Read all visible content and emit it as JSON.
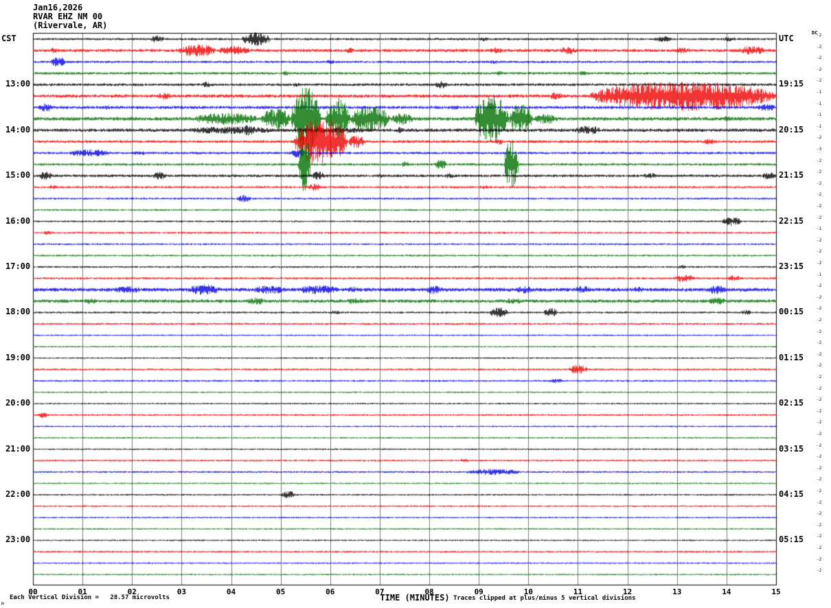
{
  "header": {
    "date": "Jan16,2026",
    "station": "RVAR EHZ NM 00",
    "location": "(Rivervale, AR)",
    "left_tz": "CST",
    "right_tz": "UTC",
    "dc_label": "DC"
  },
  "footer": {
    "scale_note": "Each Vertical Division =   28.57 microvolts",
    "xlabel": "TIME (MINUTES)",
    "clip_note": "Traces clipped at plus/minus 5 vertical divisions",
    "mark": "M"
  },
  "x_axis": {
    "ticks": [
      "00",
      "01",
      "02",
      "03",
      "04",
      "05",
      "06",
      "07",
      "08",
      "09",
      "10",
      "11",
      "12",
      "13",
      "14",
      "15"
    ]
  },
  "chart_data": {
    "type": "line",
    "title": "RVAR EHZ NM 00 (Rivervale, AR) helicorder Jan16,2026",
    "xlabel": "TIME (MINUTES)",
    "x_range_minutes": [
      0,
      15
    ],
    "row_duration_minutes": 15,
    "microvolts_per_division": "28.57",
    "clip_divisions": 5,
    "trace_order_colors": [
      "black",
      "red",
      "blue",
      "green"
    ],
    "colors": {
      "black": "#000000",
      "red": "#f00000",
      "blue": "#0000e0",
      "green": "#007000"
    },
    "rows": [
      {
        "cst": "CST",
        "utc": "UTC",
        "color": "black",
        "dc": "-2",
        "amp": 1.5,
        "events": [
          [
            2.35,
            2.65,
            5
          ],
          [
            4.2,
            4.8,
            9
          ],
          [
            9.0,
            9.2,
            3
          ],
          [
            12.5,
            12.9,
            4
          ],
          [
            13.9,
            14.2,
            3
          ]
        ]
      },
      {
        "cst": "",
        "utc": "",
        "color": "red",
        "dc": "-2",
        "amp": 2.0,
        "events": [
          [
            0.3,
            0.5,
            4
          ],
          [
            2.9,
            3.7,
            9
          ],
          [
            3.7,
            4.4,
            6
          ],
          [
            6.3,
            6.5,
            4
          ],
          [
            9.2,
            9.5,
            4
          ],
          [
            10.6,
            11.0,
            5
          ],
          [
            12.9,
            13.3,
            4
          ],
          [
            14.2,
            14.8,
            6
          ]
        ]
      },
      {
        "cst": "",
        "utc": "",
        "color": "blue",
        "dc": "-2",
        "amp": 1.5,
        "events": [
          [
            0.35,
            0.65,
            7
          ],
          [
            5.9,
            6.1,
            3
          ],
          [
            9.2,
            9.4,
            3
          ]
        ]
      },
      {
        "cst": "",
        "utc": "",
        "color": "green",
        "dc": "-2",
        "amp": 1.7,
        "events": [
          [
            5.0,
            5.2,
            3
          ],
          [
            9.3,
            9.5,
            3
          ],
          [
            11.0,
            11.2,
            3
          ]
        ]
      },
      {
        "cst": "13:00",
        "utc": "19:15",
        "color": "black",
        "dc": "-2",
        "amp": 1.8,
        "events": [
          [
            3.4,
            3.6,
            4
          ],
          [
            5.2,
            5.4,
            3
          ],
          [
            8.1,
            8.4,
            5
          ],
          [
            13.0,
            13.2,
            3
          ]
        ]
      },
      {
        "cst": "",
        "utc": "",
        "color": "red",
        "dc": "-1",
        "amp": 2.2,
        "events": [
          [
            2.5,
            2.8,
            5
          ],
          [
            10.4,
            10.7,
            5
          ],
          [
            11.2,
            15.0,
            20
          ]
        ]
      },
      {
        "cst": "",
        "utc": "",
        "color": "blue",
        "dc": "-1",
        "amp": 2.0,
        "events": [
          [
            0.1,
            0.4,
            6
          ],
          [
            1.4,
            1.6,
            3
          ],
          [
            8.4,
            8.6,
            4
          ],
          [
            14.6,
            15.0,
            5
          ]
        ]
      },
      {
        "cst": "",
        "utc": "",
        "color": "green",
        "dc": "-1",
        "amp": 2.4,
        "events": [
          [
            3.2,
            4.6,
            8
          ],
          [
            4.6,
            5.2,
            14
          ],
          [
            5.2,
            5.8,
            45
          ],
          [
            5.9,
            6.4,
            28
          ],
          [
            6.4,
            7.2,
            18
          ],
          [
            7.2,
            7.7,
            8
          ],
          [
            8.9,
            9.6,
            32
          ],
          [
            9.6,
            10.1,
            20
          ],
          [
            10.1,
            10.6,
            7
          ],
          [
            13.9,
            14.1,
            4
          ]
        ]
      },
      {
        "cst": "14:00",
        "utc": "20:15",
        "color": "black",
        "dc": "-1",
        "amp": 2.2,
        "events": [
          [
            3.0,
            5.0,
            5
          ],
          [
            4.2,
            4.5,
            8
          ],
          [
            5.0,
            7.0,
            4
          ],
          [
            7.3,
            7.5,
            4
          ],
          [
            10.9,
            11.5,
            6
          ]
        ]
      },
      {
        "cst": "",
        "utc": "",
        "color": "red",
        "dc": "-2",
        "amp": 1.8,
        "events": [
          [
            5.25,
            6.35,
            32
          ],
          [
            6.35,
            6.7,
            9
          ],
          [
            9.3,
            9.5,
            4
          ],
          [
            13.5,
            13.8,
            4
          ]
        ]
      },
      {
        "cst": "",
        "utc": "",
        "color": "blue",
        "dc": "-3",
        "amp": 1.6,
        "events": [
          [
            0.7,
            1.6,
            5
          ],
          [
            2.0,
            2.3,
            3
          ],
          [
            5.2,
            5.5,
            6
          ]
        ]
      },
      {
        "cst": "",
        "utc": "",
        "color": "green",
        "dc": "-2",
        "amp": 1.6,
        "events": [
          [
            5.35,
            5.6,
            40
          ],
          [
            7.4,
            7.6,
            4
          ],
          [
            8.1,
            8.35,
            7
          ],
          [
            9.5,
            9.8,
            34
          ]
        ]
      },
      {
        "cst": "15:00",
        "utc": "21:15",
        "color": "black",
        "dc": "-2",
        "amp": 1.8,
        "events": [
          [
            0.1,
            0.4,
            6
          ],
          [
            2.4,
            2.7,
            5
          ],
          [
            5.6,
            5.9,
            6
          ],
          [
            6.9,
            7.1,
            3
          ],
          [
            8.3,
            8.5,
            4
          ],
          [
            12.3,
            12.6,
            4
          ],
          [
            14.7,
            15.0,
            5
          ]
        ]
      },
      {
        "cst": "",
        "utc": "",
        "color": "red",
        "dc": "-2",
        "amp": 1.5,
        "events": [
          [
            0.3,
            0.5,
            3
          ],
          [
            5.55,
            5.8,
            5
          ],
          [
            9.0,
            9.2,
            3
          ]
        ]
      },
      {
        "cst": "",
        "utc": "",
        "color": "blue",
        "dc": "-2",
        "amp": 1.3,
        "events": [
          [
            4.1,
            4.4,
            5
          ]
        ]
      },
      {
        "cst": "",
        "utc": "",
        "color": "green",
        "dc": "-2",
        "amp": 1.2,
        "events": []
      },
      {
        "cst": "16:00",
        "utc": "22:15",
        "color": "black",
        "dc": "-2",
        "amp": 1.2,
        "events": [
          [
            13.9,
            14.3,
            6
          ]
        ]
      },
      {
        "cst": "",
        "utc": "",
        "color": "red",
        "dc": "-1",
        "amp": 1.3,
        "events": [
          [
            0.2,
            0.4,
            3
          ]
        ]
      },
      {
        "cst": "",
        "utc": "",
        "color": "blue",
        "dc": "-2",
        "amp": 1.2,
        "events": []
      },
      {
        "cst": "",
        "utc": "",
        "color": "green",
        "dc": "-2",
        "amp": 1.2,
        "events": []
      },
      {
        "cst": "17:00",
        "utc": "23:15",
        "color": "black",
        "dc": "-2",
        "amp": 1.2,
        "events": [
          [
            13.0,
            13.2,
            3
          ]
        ]
      },
      {
        "cst": "",
        "utc": "",
        "color": "red",
        "dc": "-1",
        "amp": 1.4,
        "events": [
          [
            12.9,
            13.4,
            5
          ],
          [
            14.0,
            14.3,
            4
          ]
        ]
      },
      {
        "cst": "",
        "utc": "",
        "color": "blue",
        "dc": "-2",
        "amp": 2.4,
        "events": [
          [
            1.6,
            2.2,
            5
          ],
          [
            3.1,
            3.8,
            7
          ],
          [
            4.4,
            5.1,
            6
          ],
          [
            5.3,
            6.2,
            6
          ],
          [
            6.3,
            6.6,
            4
          ],
          [
            7.9,
            8.3,
            6
          ],
          [
            9.7,
            10.1,
            5
          ],
          [
            10.9,
            11.3,
            5
          ],
          [
            12.0,
            12.4,
            4
          ],
          [
            13.6,
            14.0,
            6
          ]
        ]
      },
      {
        "cst": "",
        "utc": "",
        "color": "green",
        "dc": "-2",
        "amp": 2.2,
        "events": [
          [
            1.0,
            1.3,
            4
          ],
          [
            2.5,
            2.9,
            3
          ],
          [
            4.3,
            4.7,
            5
          ],
          [
            6.3,
            6.7,
            4
          ],
          [
            9.5,
            9.9,
            4
          ],
          [
            13.6,
            14.0,
            5
          ]
        ]
      },
      {
        "cst": "18:00",
        "utc": "00:15",
        "color": "black",
        "dc": "-2",
        "amp": 1.3,
        "events": [
          [
            6.0,
            6.2,
            3
          ],
          [
            9.2,
            9.6,
            7
          ],
          [
            10.3,
            10.6,
            6
          ],
          [
            14.3,
            14.5,
            4
          ]
        ]
      },
      {
        "cst": "",
        "utc": "",
        "color": "red",
        "dc": "-2",
        "amp": 1.3,
        "events": []
      },
      {
        "cst": "",
        "utc": "",
        "color": "blue",
        "dc": "-2",
        "amp": 1.0,
        "events": []
      },
      {
        "cst": "",
        "utc": "",
        "color": "green",
        "dc": "-2",
        "amp": 1.0,
        "events": []
      },
      {
        "cst": "19:00",
        "utc": "01:15",
        "color": "black",
        "dc": "-2",
        "amp": 1.0,
        "events": []
      },
      {
        "cst": "",
        "utc": "",
        "color": "red",
        "dc": "-2",
        "amp": 1.3,
        "events": [
          [
            10.8,
            11.2,
            6
          ]
        ]
      },
      {
        "cst": "",
        "utc": "",
        "color": "blue",
        "dc": "-2",
        "amp": 1.2,
        "events": [
          [
            10.4,
            10.7,
            3
          ]
        ]
      },
      {
        "cst": "",
        "utc": "",
        "color": "green",
        "dc": "-2",
        "amp": 1.0,
        "events": []
      },
      {
        "cst": "20:00",
        "utc": "02:15",
        "color": "black",
        "dc": "-2",
        "amp": 1.0,
        "events": []
      },
      {
        "cst": "",
        "utc": "",
        "color": "red",
        "dc": "-2",
        "amp": 1.2,
        "events": [
          [
            0.1,
            0.3,
            4
          ]
        ]
      },
      {
        "cst": "",
        "utc": "",
        "color": "blue",
        "dc": "-2",
        "amp": 1.0,
        "events": []
      },
      {
        "cst": "",
        "utc": "",
        "color": "green",
        "dc": "-2",
        "amp": 1.0,
        "events": []
      },
      {
        "cst": "21:00",
        "utc": "03:15",
        "color": "black",
        "dc": "-2",
        "amp": 1.0,
        "events": []
      },
      {
        "cst": "",
        "utc": "",
        "color": "red",
        "dc": "-2",
        "amp": 1.2,
        "events": [
          [
            8.6,
            8.8,
            3
          ]
        ]
      },
      {
        "cst": "",
        "utc": "",
        "color": "blue",
        "dc": "-2",
        "amp": 1.2,
        "events": [
          [
            8.7,
            9.9,
            4
          ]
        ]
      },
      {
        "cst": "",
        "utc": "",
        "color": "green",
        "dc": "-2",
        "amp": 1.0,
        "events": []
      },
      {
        "cst": "22:00",
        "utc": "04:15",
        "color": "black",
        "dc": "-2",
        "amp": 1.1,
        "events": [
          [
            5.0,
            5.3,
            5
          ]
        ]
      },
      {
        "cst": "",
        "utc": "",
        "color": "red",
        "dc": "-2",
        "amp": 1.1,
        "events": []
      },
      {
        "cst": "",
        "utc": "",
        "color": "blue",
        "dc": "-2",
        "amp": 1.0,
        "events": []
      },
      {
        "cst": "",
        "utc": "",
        "color": "green",
        "dc": "-2",
        "amp": 1.0,
        "events": []
      },
      {
        "cst": "23:00",
        "utc": "05:15",
        "color": "black",
        "dc": "-2",
        "amp": 1.0,
        "events": []
      },
      {
        "cst": "",
        "utc": "",
        "color": "red",
        "dc": "-2",
        "amp": 1.2,
        "events": []
      },
      {
        "cst": "",
        "utc": "",
        "color": "blue",
        "dc": "-2",
        "amp": 1.0,
        "events": []
      },
      {
        "cst": "",
        "utc": "",
        "color": "green",
        "dc": "-2",
        "amp": 1.0,
        "events": []
      }
    ]
  }
}
